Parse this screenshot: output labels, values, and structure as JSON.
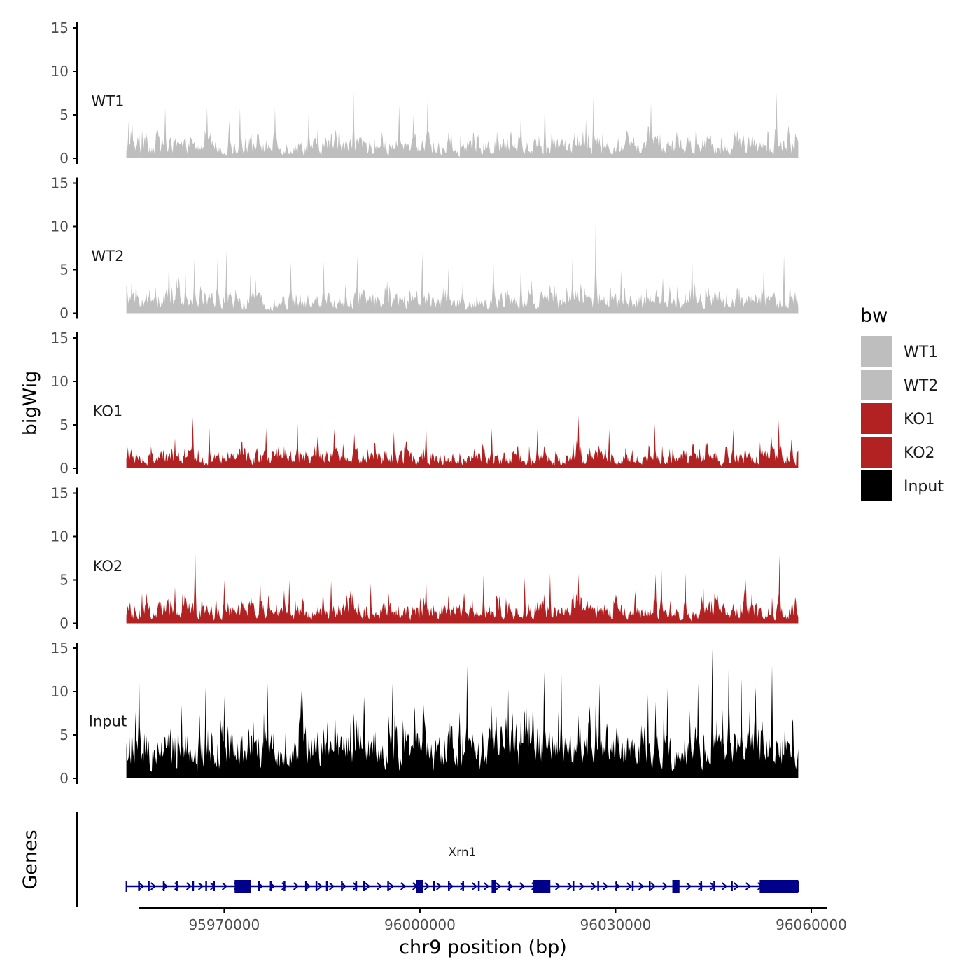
{
  "chart_data": {
    "type": "area",
    "title": "",
    "ylabel": "bigWig",
    "genes_label": "Genes",
    "xlabel": "chr9 position (bp)",
    "chromosome": "chr9",
    "xlim": [
      95950000,
      96060000
    ],
    "data_range": [
      95955000,
      96058000
    ],
    "x_ticks": [
      95970000,
      96000000,
      96030000,
      96060000
    ],
    "x_tick_labels": [
      "95970000",
      "96000000",
      "96030000",
      "96060000"
    ],
    "y_ticks": [
      0,
      5,
      10,
      15
    ],
    "y_tick_labels": [
      "0",
      "5",
      "10",
      "15"
    ],
    "ylim": [
      0,
      15
    ],
    "legend_title": "bw",
    "legend_position": "right",
    "series": [
      {
        "name": "WT1",
        "color": "#BEBEBE",
        "typical": 1.6,
        "max": 7.7,
        "peaks": [
          [
            95955300,
            4.3
          ],
          [
            95957000,
            3.5
          ],
          [
            95961000,
            5.8
          ],
          [
            95967400,
            5.9
          ],
          [
            95972400,
            5.8
          ],
          [
            95977700,
            6.1
          ],
          [
            95977900,
            5.9
          ],
          [
            95983000,
            5.5
          ],
          [
            95989800,
            7.6
          ],
          [
            95996800,
            6.2
          ],
          [
            95999000,
            5.0
          ],
          [
            96001200,
            6.5
          ],
          [
            96015500,
            5.4
          ],
          [
            96019200,
            6.8
          ],
          [
            96025500,
            4.5
          ],
          [
            96026600,
            7.0
          ],
          [
            96035400,
            6.5
          ],
          [
            96054700,
            7.6
          ]
        ]
      },
      {
        "name": "WT2",
        "color": "#BEBEBE",
        "typical": 1.6,
        "max": 10.5,
        "peaks": [
          [
            95958000,
            1.9
          ],
          [
            95961500,
            6.5
          ],
          [
            95964000,
            5.0
          ],
          [
            95965400,
            6.2
          ],
          [
            95969000,
            6.2
          ],
          [
            95970400,
            7.2
          ],
          [
            95974000,
            4.5
          ],
          [
            95980200,
            6.0
          ],
          [
            95985300,
            6.0
          ],
          [
            95990400,
            6.8
          ],
          [
            96000400,
            7.0
          ],
          [
            96004400,
            5.2
          ],
          [
            96011300,
            6.3
          ],
          [
            96015500,
            5.7
          ],
          [
            96023400,
            6.2
          ],
          [
            96027000,
            10.5
          ],
          [
            96030800,
            5.0
          ],
          [
            96041700,
            6.8
          ],
          [
            96052700,
            5.8
          ],
          [
            96055800,
            6.7
          ]
        ]
      },
      {
        "name": "KO1",
        "color": "#B22222",
        "typical": 1.4,
        "max": 6.2,
        "peaks": [
          [
            95962400,
            3.5
          ],
          [
            95965200,
            5.9
          ],
          [
            95967700,
            4.6
          ],
          [
            95976400,
            4.6
          ],
          [
            95981200,
            5.1
          ],
          [
            95986800,
            4.5
          ],
          [
            95990000,
            4.0
          ],
          [
            95996000,
            4.2
          ],
          [
            96001000,
            5.3
          ],
          [
            96011000,
            4.6
          ],
          [
            96018000,
            4.5
          ],
          [
            96024300,
            6.1
          ],
          [
            96029000,
            4.5
          ],
          [
            96036000,
            5.1
          ],
          [
            96048000,
            4.5
          ],
          [
            96055000,
            5.5
          ]
        ]
      },
      {
        "name": "KO2",
        "color": "#B22222",
        "typical": 1.6,
        "max": 9.1,
        "peaks": [
          [
            95957400,
            3.5
          ],
          [
            95962500,
            4.2
          ],
          [
            95965500,
            9.1
          ],
          [
            95970000,
            5.0
          ],
          [
            95975500,
            5.2
          ],
          [
            95980000,
            5.0
          ],
          [
            95986400,
            4.9
          ],
          [
            95992500,
            4.6
          ],
          [
            96001000,
            5.5
          ],
          [
            96009800,
            5.5
          ],
          [
            96016100,
            5.3
          ],
          [
            96020000,
            5.7
          ],
          [
            96024300,
            5.7
          ],
          [
            96036100,
            5.7
          ],
          [
            96037000,
            6.2
          ],
          [
            96040700,
            5.7
          ],
          [
            96043500,
            4.7
          ],
          [
            96050000,
            5.1
          ],
          [
            96055100,
            7.8
          ]
        ]
      },
      {
        "name": "Input",
        "color": "#000000",
        "typical": 4.0,
        "max": 15.0,
        "peaks": [
          [
            95957000,
            13.0
          ],
          [
            95963500,
            8.5
          ],
          [
            95967200,
            10.5
          ],
          [
            95970000,
            9.5
          ],
          [
            95976600,
            11.0
          ],
          [
            95982000,
            9.5
          ],
          [
            95989800,
            7.5
          ],
          [
            95995800,
            11.0
          ],
          [
            96000500,
            9.5
          ],
          [
            96007200,
            13.0
          ],
          [
            96013500,
            10.3
          ],
          [
            96019000,
            12.3
          ],
          [
            96021700,
            12.8
          ],
          [
            96027500,
            11.0
          ],
          [
            96035000,
            9.7
          ],
          [
            96037900,
            10.4
          ],
          [
            96042600,
            11.0
          ],
          [
            96044800,
            15.0
          ],
          [
            96047400,
            13.2
          ],
          [
            96049300,
            11.5
          ],
          [
            96054000,
            13.0
          ]
        ]
      }
    ],
    "gene_track": {
      "gene": "Xrn1",
      "color": "#00008B",
      "start": 95955000,
      "end": 96058000,
      "strand": "+",
      "exons": [
        [
          95956800,
          95957000
        ],
        [
          95958300,
          95958500
        ],
        [
          95960600,
          95960800
        ],
        [
          95962600,
          95962800
        ],
        [
          95965100,
          95965300
        ],
        [
          95967100,
          95967300
        ],
        [
          95968300,
          95968500
        ],
        [
          95971600,
          95974100
        ],
        [
          95975200,
          95975500
        ],
        [
          95977000,
          95977200
        ],
        [
          95979100,
          95979300
        ],
        [
          95982400,
          95982600
        ],
        [
          95984000,
          95984200
        ],
        [
          95985600,
          95985800
        ],
        [
          95987900,
          95988100
        ],
        [
          95990100,
          95990300
        ],
        [
          95991300,
          95991500
        ],
        [
          95995000,
          95995200
        ],
        [
          95999400,
          96000500
        ],
        [
          96002000,
          96002200
        ],
        [
          96004300,
          96004500
        ],
        [
          96006500,
          96006700
        ],
        [
          96008900,
          96009100
        ],
        [
          96011000,
          96011600
        ],
        [
          96013600,
          96013800
        ],
        [
          96017400,
          96020000
        ],
        [
          96023400,
          96023600
        ],
        [
          96027200,
          96027400
        ],
        [
          96030000,
          96030200
        ],
        [
          96032500,
          96032700
        ],
        [
          96035100,
          96035300
        ],
        [
          96038700,
          96039800
        ],
        [
          96043000,
          96043200
        ],
        [
          96045000,
          96045200
        ],
        [
          96047700,
          96047900
        ],
        [
          96052100,
          96058000
        ]
      ]
    }
  }
}
